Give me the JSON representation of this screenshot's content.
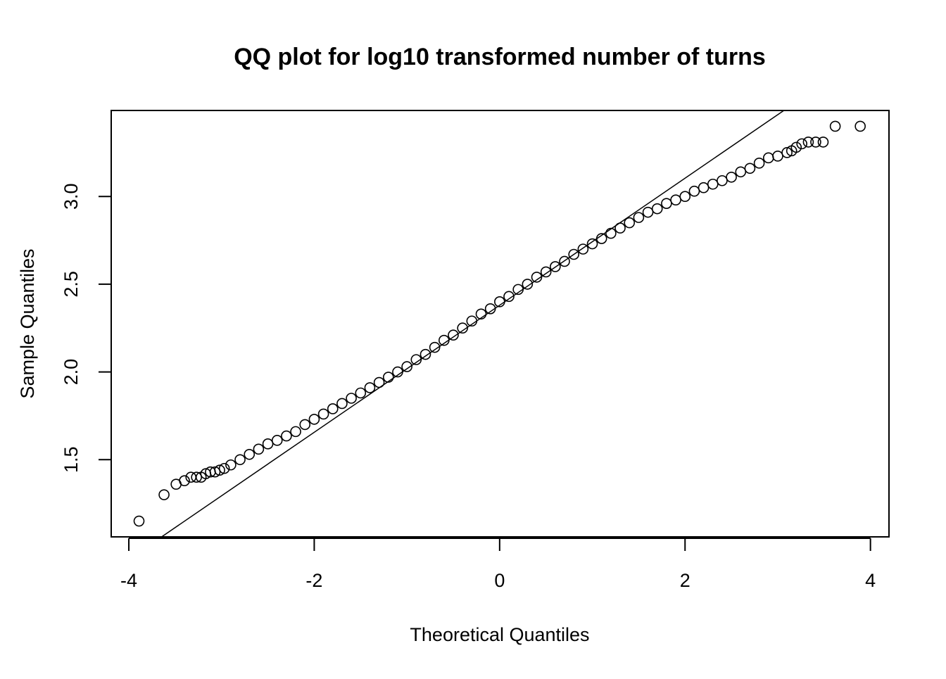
{
  "chart_data": {
    "type": "scatter",
    "title": "QQ plot for log10 transformed number of turns",
    "x_label": "Theoretical Quantiles",
    "y_label": "Sample Quantiles",
    "x": [
      -3.89,
      -3.62,
      -3.49,
      -3.4,
      -3.33,
      -3.27,
      -3.22,
      -3.17,
      -3.12,
      -3.07,
      -3.02,
      -2.97,
      -2.9,
      -2.8,
      -2.7,
      -2.6,
      -2.5,
      -2.4,
      -2.3,
      -2.2,
      -2.1,
      -2.0,
      -1.9,
      -1.8,
      -1.7,
      -1.6,
      -1.5,
      -1.4,
      -1.3,
      -1.2,
      -1.1,
      -1.0,
      -0.9,
      -0.8,
      -0.7,
      -0.6,
      -0.5,
      -0.4,
      -0.3,
      -0.2,
      -0.1,
      0,
      0.1,
      0.2,
      0.3,
      0.4,
      0.5,
      0.6,
      0.7,
      0.8,
      0.9,
      1.0,
      1.1,
      1.2,
      1.3,
      1.4,
      1.5,
      1.6,
      1.7,
      1.8,
      1.9,
      2.0,
      2.1,
      2.2,
      2.3,
      2.4,
      2.5,
      2.6,
      2.7,
      2.8,
      2.9,
      3.0,
      3.1,
      3.15,
      3.2,
      3.26,
      3.33,
      3.41,
      3.49,
      3.62,
      3.89
    ],
    "values": [
      1.15,
      1.3,
      1.36,
      1.38,
      1.4,
      1.4,
      1.4,
      1.42,
      1.43,
      1.43,
      1.44,
      1.45,
      1.47,
      1.5,
      1.53,
      1.56,
      1.59,
      1.61,
      1.635,
      1.66,
      1.7,
      1.73,
      1.76,
      1.79,
      1.82,
      1.85,
      1.88,
      1.91,
      1.94,
      1.97,
      2.0,
      2.03,
      2.07,
      2.1,
      2.14,
      2.18,
      2.21,
      2.25,
      2.29,
      2.33,
      2.36,
      2.4,
      2.43,
      2.47,
      2.5,
      2.54,
      2.57,
      2.6,
      2.63,
      2.67,
      2.7,
      2.73,
      2.76,
      2.79,
      2.82,
      2.85,
      2.88,
      2.91,
      2.93,
      2.96,
      2.98,
      3.0,
      3.03,
      3.05,
      3.07,
      3.09,
      3.11,
      3.14,
      3.16,
      3.19,
      3.22,
      3.23,
      3.25,
      3.26,
      3.28,
      3.3,
      3.31,
      3.31,
      3.31,
      3.4,
      3.4
    ],
    "color": "#000000",
    "abline": {
      "intercept": 2.38,
      "slope": 0.362
    },
    "xlim": [
      -4.19,
      4.2
    ],
    "ylim": [
      1.06,
      3.49
    ],
    "xticks": [
      -4,
      -2,
      0,
      2,
      4
    ],
    "yticks": [
      1.5,
      {
        "value": 2,
        "label": "2.0"
      },
      2.5,
      {
        "value": 3,
        "label": "3.0"
      }
    ]
  }
}
